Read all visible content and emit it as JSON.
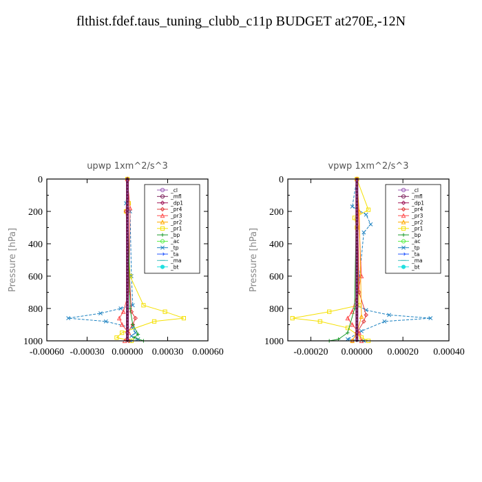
{
  "page": {
    "title": "flthist.fdef.taus_tuning_clubb_c11p  BUDGET at270E,-12N"
  },
  "legend_items": [
    {
      "name": "_cl",
      "color": "#9b59b6",
      "marker": "circle"
    },
    {
      "name": "_mfl",
      "color": "#7b1f5a",
      "marker": "circle"
    },
    {
      "name": "_dp1",
      "color": "#a0185a",
      "marker": "diamond"
    },
    {
      "name": "_pr4",
      "color": "#e03a3a",
      "marker": "diamond"
    },
    {
      "name": "_pr3",
      "color": "#ff4d4d",
      "marker": "triangle"
    },
    {
      "name": "_pr2",
      "color": "#ffaa00",
      "marker": "triangle"
    },
    {
      "name": "_pr1",
      "color": "#f5e000",
      "marker": "square"
    },
    {
      "name": "_bp",
      "color": "#1a9a2a",
      "marker": "plus"
    },
    {
      "name": "_ac",
      "color": "#55ee44",
      "marker": "circle"
    },
    {
      "name": "_tp",
      "color": "#1a80c0",
      "marker": "x"
    },
    {
      "name": "_ta",
      "color": "#2255ff",
      "marker": "arrow"
    },
    {
      "name": "_ma",
      "color": "#40c0c0",
      "marker": "dash"
    },
    {
      "name": "_bt",
      "color": "#20e0e0",
      "marker": "star"
    }
  ],
  "chart_data": [
    {
      "type": "line",
      "title": "upwp   1xm^2/s^3",
      "ylabel": "Pressure [hPa]",
      "ylim": [
        1000,
        0
      ],
      "xlim": [
        -0.0006,
        0.0006
      ],
      "xticks": [
        "-0.00060",
        "-0.00030",
        "0.00000",
        "0.00030",
        "0.00060"
      ],
      "xtick_values": [
        -0.0006,
        -0.0003,
        0.0,
        0.0003,
        0.0006
      ],
      "yticks": [
        "0",
        "200",
        "400",
        "600",
        "800",
        "1000"
      ],
      "ytick_values": [
        0,
        200,
        400,
        600,
        800,
        1000
      ],
      "legend": "top-right",
      "series": [
        {
          "name": "_tp",
          "x": [
            0,
            -1e-05,
            2e-05,
            3e-05,
            4e-05,
            -5e-05,
            -0.0002,
            -0.00044,
            -0.00016,
            4e-05,
            6e-05,
            3e-05,
            8e-05,
            2e-05
          ],
          "y": [
            0,
            150,
            200,
            600,
            780,
            800,
            830,
            860,
            880,
            920,
            950,
            970,
            990,
            1000
          ]
        },
        {
          "name": "_pr1",
          "x": [
            0,
            1e-05,
            -1e-05,
            2e-05,
            0.00012,
            0.00028,
            0.00042,
            0.0002,
            -4e-05,
            -8e-05,
            3e-05
          ],
          "y": [
            0,
            150,
            200,
            600,
            780,
            820,
            860,
            880,
            950,
            980,
            1000
          ]
        },
        {
          "name": "_pr3",
          "x": [
            0,
            2e-05,
            1e-05,
            -3e-05,
            -6e-05,
            -4e-05,
            1e-05,
            -2e-05
          ],
          "y": [
            0,
            180,
            700,
            820,
            860,
            900,
            950,
            1000
          ]
        },
        {
          "name": "_pr4",
          "x": [
            0,
            -1e-05,
            3e-05,
            6e-05,
            4e-05,
            0.0,
            1e-05
          ],
          "y": [
            0,
            200,
            820,
            860,
            900,
            950,
            1000
          ]
        },
        {
          "name": "_bp",
          "x": [
            0,
            2e-05,
            4e-05,
            8e-05,
            5e-05,
            0.00012
          ],
          "y": [
            0,
            800,
            900,
            960,
            980,
            1000
          ]
        }
      ]
    },
    {
      "type": "line",
      "title": "vpwp   1xm^2/s^3",
      "ylabel": "Pressure [hPa]",
      "ylim": [
        1000,
        0
      ],
      "xlim": [
        -0.0003,
        0.0004
      ],
      "xticks": [
        "-0.00020",
        "0.00000",
        "0.00020",
        "0.00040"
      ],
      "xtick_values": [
        -0.0002,
        0.0,
        0.0002,
        0.0004
      ],
      "yticks": [
        "0",
        "200",
        "400",
        "600",
        "800",
        "1000"
      ],
      "ytick_values": [
        0,
        200,
        400,
        600,
        800,
        1000
      ],
      "legend": "top-right",
      "series": [
        {
          "name": "_tp",
          "x": [
            0,
            -2e-05,
            4e-05,
            6e-05,
            3e-05,
            0.0,
            4e-05,
            0.00014,
            0.00032,
            0.00012,
            2e-05,
            -4e-05,
            3e-05
          ],
          "y": [
            0,
            170,
            220,
            280,
            330,
            780,
            810,
            840,
            860,
            880,
            940,
            990,
            1000
          ]
        },
        {
          "name": "_pr1",
          "x": [
            0,
            5e-05,
            -1e-05,
            0.0,
            1e-05,
            -0.00012,
            -0.00028,
            -0.00016,
            -4e-05,
            2e-05,
            5e-05
          ],
          "y": [
            0,
            190,
            240,
            300,
            780,
            820,
            860,
            880,
            920,
            980,
            1000
          ]
        },
        {
          "name": "_pr3",
          "x": [
            0,
            2e-05,
            -2e-05,
            -4e-05,
            -2e-05,
            1e-05,
            2e-05
          ],
          "y": [
            0,
            600,
            820,
            860,
            900,
            950,
            1000
          ]
        },
        {
          "name": "_pr4",
          "x": [
            0,
            1e-05,
            4e-05,
            3e-05,
            0.0,
            -2e-05
          ],
          "y": [
            0,
            700,
            840,
            880,
            950,
            1000
          ]
        },
        {
          "name": "_bp",
          "x": [
            0,
            -1e-05,
            -4e-05,
            -8e-05,
            -0.00012
          ],
          "y": [
            0,
            800,
            950,
            990,
            1000
          ]
        },
        {
          "name": "_pr2",
          "x": [
            0,
            1e-05,
            2e-05,
            0.0,
            -2e-05
          ],
          "y": [
            0,
            200,
            850,
            950,
            1000
          ]
        }
      ]
    }
  ]
}
